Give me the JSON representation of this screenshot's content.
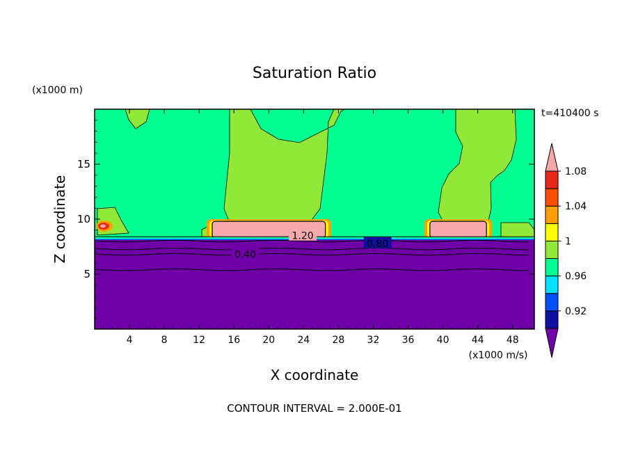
{
  "chart_data": {
    "type": "contour",
    "title": "Saturation Ratio",
    "xlabel": "X coordinate",
    "ylabel": "Z coordinate",
    "x_unit": "(x1000 m/s)",
    "y_unit": "(x1000 m)",
    "time_label": "t=410400 s",
    "footer": "CONTOUR INTERVAL = 2.000E-01",
    "xlim": [
      0,
      50.5
    ],
    "ylim": [
      0,
      20
    ],
    "x_ticks": [
      4,
      8,
      12,
      16,
      20,
      24,
      28,
      32,
      36,
      40,
      44,
      48
    ],
    "y_ticks": [
      5,
      10,
      15
    ],
    "contour_labels": [
      {
        "text": "1.20",
        "x": 23.9,
        "z": 8.5
      },
      {
        "text": "0.80",
        "x": 32.5,
        "z": 7.8
      },
      {
        "text": "0.40",
        "x": 17.3,
        "z": 6.8
      }
    ],
    "colorbar": {
      "levels": [
        0.92,
        0.96,
        1,
        1.04,
        1.08
      ],
      "labels": [
        "0.92",
        "0.96",
        "1",
        "1.04",
        "1.08"
      ],
      "colors": [
        "#7000a8",
        "#1010a0",
        "#0050ff",
        "#00e0ff",
        "#00ff90",
        "#90e838",
        "#ffff00",
        "#ffa000",
        "#ff5000",
        "#e82818",
        "#f8a8a8"
      ]
    },
    "regions": {
      "below_z_km": 8.1,
      "below_value_color": "#7000a8",
      "upper_background_color": "#00ff90",
      "supersaturated_layer_z_km": [
        8.3,
        9.8
      ],
      "supersaturated_layer_x_ranges": [
        [
          13.5,
          26.5
        ],
        [
          38.5,
          45.0
        ]
      ]
    }
  }
}
